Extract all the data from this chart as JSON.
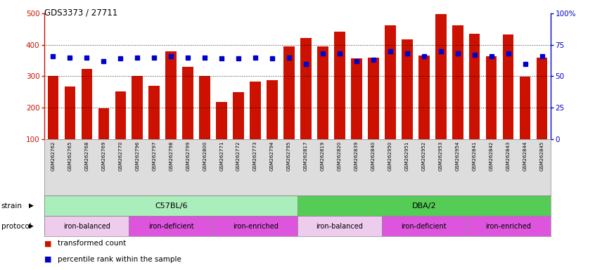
{
  "title": "GDS3373 / 27711",
  "samples": [
    "GSM262762",
    "GSM262765",
    "GSM262768",
    "GSM262769",
    "GSM262770",
    "GSM262796",
    "GSM262797",
    "GSM262798",
    "GSM262799",
    "GSM262800",
    "GSM262771",
    "GSM262772",
    "GSM262773",
    "GSM262794",
    "GSM262795",
    "GSM262817",
    "GSM262819",
    "GSM262820",
    "GSM262839",
    "GSM262840",
    "GSM262950",
    "GSM262951",
    "GSM262952",
    "GSM262953",
    "GSM262954",
    "GSM262841",
    "GSM262842",
    "GSM262843",
    "GSM262844",
    "GSM262845"
  ],
  "bar_values": [
    300,
    268,
    323,
    197,
    251,
    302,
    270,
    380,
    330,
    302,
    218,
    250,
    283,
    287,
    395,
    422,
    395,
    443,
    358,
    360,
    462,
    418,
    365,
    498,
    462,
    435,
    364,
    433,
    298,
    360
  ],
  "percentile_values": [
    66,
    65,
    65,
    62,
    64,
    65,
    65,
    66,
    65,
    65,
    64,
    64,
    65,
    64,
    65,
    60,
    68,
    68,
    62,
    63,
    70,
    68,
    66,
    70,
    68,
    67,
    66,
    68,
    60,
    66
  ],
  "left_ylim": [
    100,
    500
  ],
  "right_ylim": [
    0,
    100
  ],
  "left_yticks": [
    100,
    200,
    300,
    400,
    500
  ],
  "right_yticks": [
    0,
    25,
    50,
    75,
    100
  ],
  "right_yticklabels": [
    "0",
    "25",
    "50",
    "75",
    "100%"
  ],
  "bar_color": "#cc1100",
  "dot_color": "#0000cc",
  "strain_groups": [
    {
      "label": "C57BL/6",
      "start": 0,
      "end": 15,
      "color": "#aaeebb"
    },
    {
      "label": "DBA/2",
      "start": 15,
      "end": 30,
      "color": "#55cc55"
    }
  ],
  "protocol_groups": [
    {
      "label": "iron-balanced",
      "start": 0,
      "end": 5,
      "color": "#eeccee"
    },
    {
      "label": "iron-deficient",
      "start": 5,
      "end": 10,
      "color": "#dd55dd"
    },
    {
      "label": "iron-enriched",
      "start": 10,
      "end": 15,
      "color": "#dd55dd"
    },
    {
      "label": "iron-balanced",
      "start": 15,
      "end": 20,
      "color": "#eeccee"
    },
    {
      "label": "iron-deficient",
      "start": 20,
      "end": 25,
      "color": "#dd55dd"
    },
    {
      "label": "iron-enriched",
      "start": 25,
      "end": 30,
      "color": "#dd55dd"
    }
  ]
}
